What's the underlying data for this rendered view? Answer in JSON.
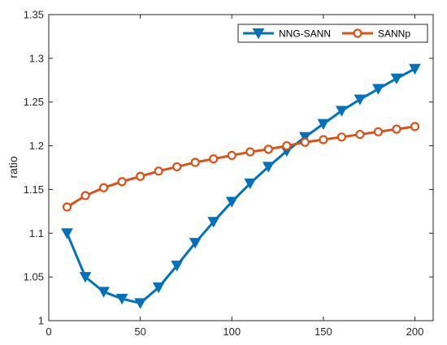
{
  "chart_data": {
    "type": "line",
    "title": "",
    "xlabel": "",
    "ylabel": "ratio",
    "xlim": [
      0,
      210
    ],
    "ylim": [
      1,
      1.35
    ],
    "xticks": [
      0,
      50,
      100,
      150,
      200
    ],
    "xtick_labels": [
      "0",
      "50",
      "100",
      "150",
      "200"
    ],
    "yticks": [
      1,
      1.05,
      1.1,
      1.15,
      1.2,
      1.25,
      1.3,
      1.35
    ],
    "ytick_labels": [
      "1",
      "1.05",
      "1.1",
      "1.15",
      "1.2",
      "1.25",
      "1.3",
      "1.35"
    ],
    "grid": false,
    "legend_position": "top-right",
    "series": [
      {
        "name": "NNG-SANN",
        "color": "#0072BD",
        "marker": "triangle-down",
        "x": [
          10,
          20,
          30,
          40,
          50,
          60,
          70,
          80,
          90,
          100,
          110,
          120,
          130,
          140,
          150,
          160,
          170,
          180,
          190,
          200
        ],
        "y": [
          1.1,
          1.05,
          1.033,
          1.025,
          1.02,
          1.038,
          1.063,
          1.089,
          1.113,
          1.136,
          1.157,
          1.176,
          1.194,
          1.21,
          1.225,
          1.24,
          1.253,
          1.265,
          1.277,
          1.288
        ]
      },
      {
        "name": "SANNp",
        "color": "#D95319",
        "marker": "circle",
        "x": [
          10,
          20,
          30,
          40,
          50,
          60,
          70,
          80,
          90,
          100,
          110,
          120,
          130,
          140,
          150,
          160,
          170,
          180,
          190,
          200
        ],
        "y": [
          1.13,
          1.143,
          1.152,
          1.159,
          1.165,
          1.171,
          1.176,
          1.181,
          1.185,
          1.189,
          1.193,
          1.196,
          1.2,
          1.204,
          1.207,
          1.21,
          1.213,
          1.216,
          1.219,
          1.222
        ]
      }
    ]
  }
}
